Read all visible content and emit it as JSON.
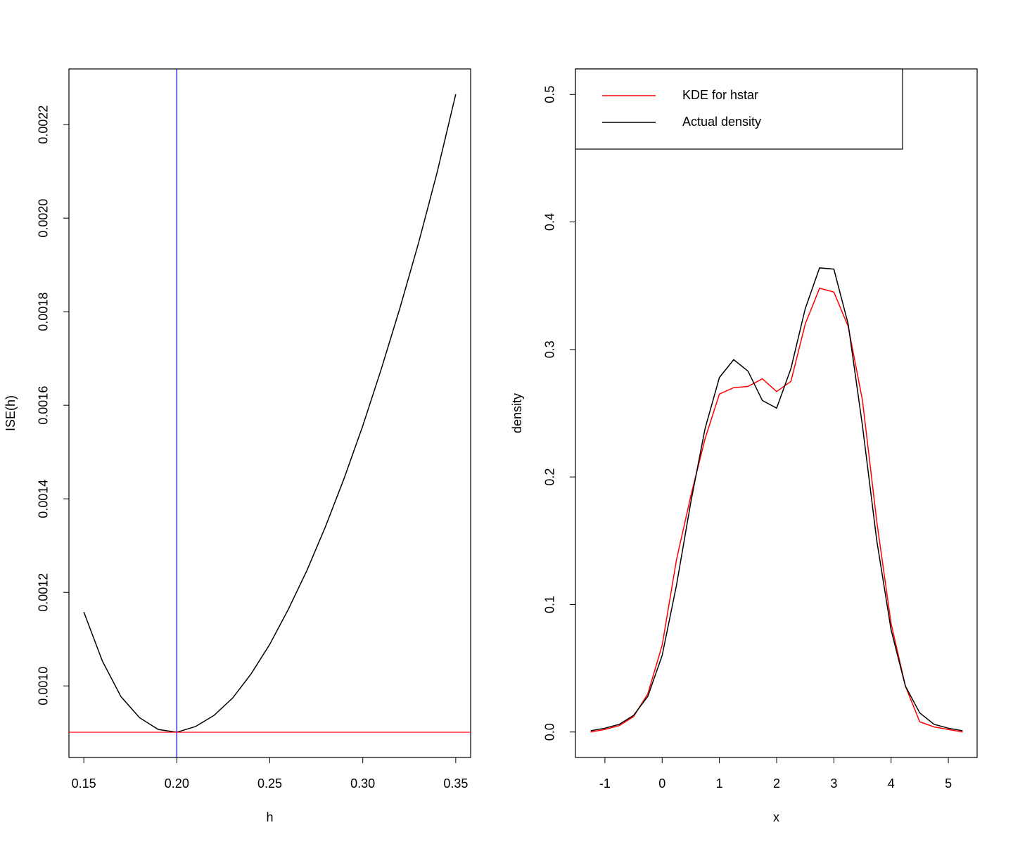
{
  "chart_data": [
    {
      "type": "line",
      "x_label": "h",
      "y_label": "ISE(h)",
      "x": [
        0.15,
        0.16,
        0.17,
        0.18,
        0.19,
        0.2,
        0.21,
        0.22,
        0.23,
        0.24,
        0.25,
        0.26,
        0.27,
        0.28,
        0.29,
        0.3,
        0.31,
        0.32,
        0.33,
        0.34,
        0.35
      ],
      "series": [
        {
          "color": "#000000",
          "values": [
            0.001158,
            0.001053,
            0.000977,
            0.000932,
            0.000907,
            0.000901,
            0.000913,
            0.000937,
            0.000974,
            0.001026,
            0.001089,
            0.001164,
            0.001247,
            0.001341,
            0.001444,
            0.001556,
            0.001678,
            0.001808,
            0.001947,
            0.002098,
            0.002265
          ]
        }
      ],
      "vlines": [
        {
          "value": 0.2,
          "color": "#0000ff"
        }
      ],
      "hlines": [
        {
          "value": 0.000901,
          "color": "#ff0000"
        }
      ],
      "xlim": [
        0.142,
        0.358
      ],
      "xticks": [
        0.15,
        {
          "value": 0.2,
          "label": "0.20"
        },
        0.25,
        {
          "value": 0.3,
          "label": "0.30"
        },
        0.35
      ],
      "ylim": [
        0.000847,
        0.002319
      ],
      "yticks": [
        {
          "value": 0.001,
          "label": "0.0010"
        },
        {
          "value": 0.0012,
          "label": "0.0012"
        },
        {
          "value": 0.0014,
          "label": "0.0014"
        },
        {
          "value": 0.0016,
          "label": "0.0016"
        },
        {
          "value": 0.0018,
          "label": "0.0018"
        },
        {
          "value": 0.002,
          "label": "0.0020"
        },
        {
          "value": 0.0022,
          "label": "0.0022"
        }
      ]
    },
    {
      "type": "line",
      "x_label": "x",
      "y_label": "density",
      "legend": "topleft",
      "x": [
        -1.25,
        -1.0,
        -0.75,
        -0.5,
        -0.25,
        0,
        0.25,
        0.5,
        0.75,
        1.0,
        1.25,
        1.5,
        1.75,
        2.0,
        2.25,
        2.5,
        2.75,
        3.0,
        3.25,
        3.5,
        3.75,
        4.0,
        4.25,
        4.5,
        4.75,
        5.0,
        5.25
      ],
      "series": [
        {
          "name": "KDE for hstar",
          "color": "#ff0000",
          "values": [
            0.0,
            0.002,
            0.005,
            0.012,
            0.03,
            0.068,
            0.135,
            0.185,
            0.23,
            0.265,
            0.27,
            0.271,
            0.277,
            0.267,
            0.275,
            0.32,
            0.348,
            0.345,
            0.318,
            0.26,
            0.165,
            0.085,
            0.036,
            0.008,
            0.004,
            0.002,
            0.0
          ]
        },
        {
          "name": "Actual density",
          "color": "#000000",
          "values": [
            0.001,
            0.003,
            0.006,
            0.013,
            0.028,
            0.06,
            0.115,
            0.18,
            0.238,
            0.278,
            0.292,
            0.283,
            0.26,
            0.254,
            0.285,
            0.332,
            0.364,
            0.363,
            0.32,
            0.24,
            0.15,
            0.08,
            0.036,
            0.015,
            0.006,
            0.003,
            0.001
          ]
        }
      ],
      "xlim": [
        -1.515,
        5.503
      ],
      "xticks": [
        -1,
        0,
        1,
        2,
        3,
        4,
        5
      ],
      "ylim": [
        -0.02,
        0.52
      ],
      "yticks": [
        {
          "value": 0,
          "label": "0.0"
        },
        0.1,
        0.2,
        0.3,
        0.4,
        0.5
      ]
    }
  ]
}
